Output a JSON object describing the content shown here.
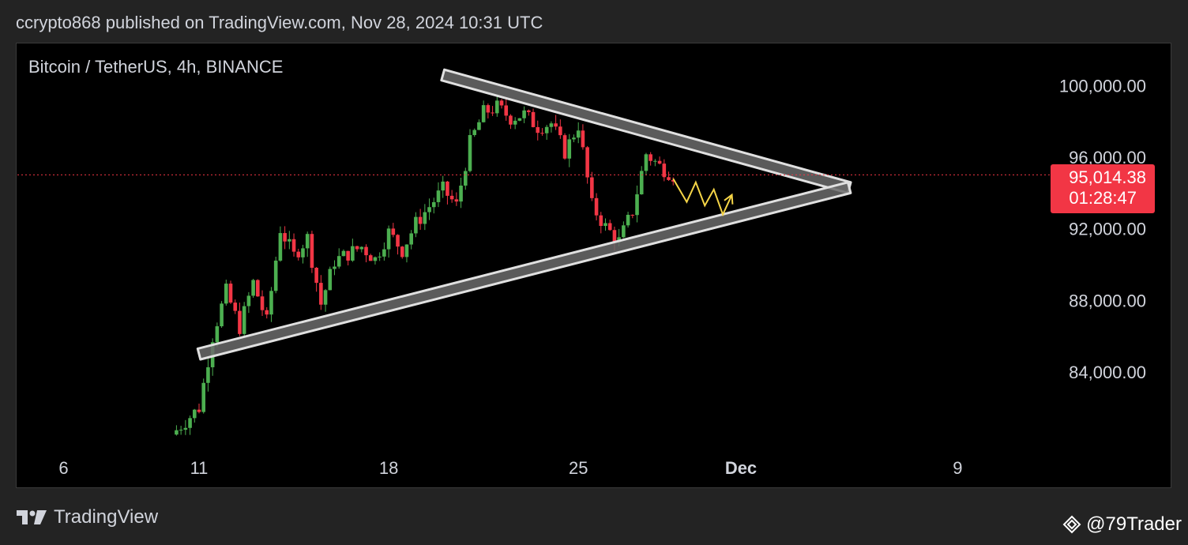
{
  "header": {
    "published_text": "ccrypto868 published on TradingView.com, Nov 28, 2024 10:31 UTC"
  },
  "chart": {
    "symbol_title": "Bitcoin / TetherUS, 4h, BINANCE",
    "price_label": "95,014.38",
    "countdown_label": "01:28:47"
  },
  "footer": {
    "brand": "TradingView",
    "watermark": "@79Trader"
  },
  "colors": {
    "background": "#000000",
    "up": "#4caf50",
    "down": "#f23645",
    "price_badge": "#f23645",
    "triangle_fill": "#6b6b6b",
    "triangle_border": "#e0e0e0",
    "projection": "#f5d547"
  },
  "chart_data": {
    "type": "candlestick",
    "title": "Bitcoin / TetherUS, 4h, BINANCE",
    "x_axis": {
      "ticks": [
        {
          "label": "6",
          "date": "2024-11-06"
        },
        {
          "label": "11",
          "date": "2024-11-11"
        },
        {
          "label": "18",
          "date": "2024-11-18"
        },
        {
          "label": "25",
          "date": "2024-11-25"
        },
        {
          "label": "Dec",
          "date": "2024-12-01"
        },
        {
          "label": "9",
          "date": "2024-12-09"
        }
      ]
    },
    "y_axis": {
      "range": [
        80000,
        102000
      ],
      "ticks": [
        {
          "label": "84,000.00",
          "value": 84000
        },
        {
          "label": "88,000.00",
          "value": 88000
        },
        {
          "label": "92,000.00",
          "value": 92000
        },
        {
          "label": "96,000.00",
          "value": 96000
        },
        {
          "label": "100,000.00",
          "value": 100000
        }
      ]
    },
    "current_price": 95014.38,
    "close_path": [
      {
        "date": "2024-11-10",
        "close": 80500
      },
      {
        "date": "2024-11-11",
        "close": 82000
      },
      {
        "date": "2024-11-11T12:00",
        "close": 86000
      },
      {
        "date": "2024-11-12",
        "close": 88500
      },
      {
        "date": "2024-11-12T12:00",
        "close": 86500
      },
      {
        "date": "2024-11-13",
        "close": 89000
      },
      {
        "date": "2024-11-13T12:00",
        "close": 86800
      },
      {
        "date": "2024-11-14",
        "close": 92000
      },
      {
        "date": "2024-11-14T12:00",
        "close": 90500
      },
      {
        "date": "2024-11-15",
        "close": 91500
      },
      {
        "date": "2024-11-15T12:00",
        "close": 87800
      },
      {
        "date": "2024-11-16",
        "close": 90200
      },
      {
        "date": "2024-11-17",
        "close": 91000
      },
      {
        "date": "2024-11-17T12:00",
        "close": 90300
      },
      {
        "date": "2024-11-18",
        "close": 91800
      },
      {
        "date": "2024-11-18T12:00",
        "close": 90800
      },
      {
        "date": "2024-11-19",
        "close": 92300
      },
      {
        "date": "2024-11-20",
        "close": 94200
      },
      {
        "date": "2024-11-20T12:00",
        "close": 93300
      },
      {
        "date": "2024-11-21",
        "close": 96800
      },
      {
        "date": "2024-11-21T12:00",
        "close": 98500
      },
      {
        "date": "2024-11-22",
        "close": 98800
      },
      {
        "date": "2024-11-22T12:00",
        "close": 98200
      },
      {
        "date": "2024-11-23",
        "close": 98400
      },
      {
        "date": "2024-11-23T12:00",
        "close": 97700
      },
      {
        "date": "2024-11-24",
        "close": 97900
      },
      {
        "date": "2024-11-24T12:00",
        "close": 96300
      },
      {
        "date": "2024-11-25",
        "close": 97800
      },
      {
        "date": "2024-11-25T12:00",
        "close": 93300
      },
      {
        "date": "2024-11-26",
        "close": 92100
      },
      {
        "date": "2024-11-26T12:00",
        "close": 91300
      },
      {
        "date": "2024-11-27",
        "close": 93000
      },
      {
        "date": "2024-11-27T12:00",
        "close": 96200
      },
      {
        "date": "2024-11-28",
        "close": 95500
      },
      {
        "date": "2024-11-28T12:00",
        "close": 95014.38
      }
    ],
    "annotations": {
      "triangle_upper_line": [
        {
          "date": "2024-11-20",
          "price": 100600
        },
        {
          "date": "2024-12-05",
          "price": 94300
        }
      ],
      "triangle_lower_line": [
        {
          "date": "2024-11-11",
          "price": 85000
        },
        {
          "date": "2024-12-05",
          "price": 94300
        }
      ],
      "projection_zigzag": [
        {
          "date": "2024-11-28T12:00",
          "price": 94800
        },
        {
          "date": "2024-11-29",
          "price": 93500
        },
        {
          "date": "2024-11-29T08:00",
          "price": 94600
        },
        {
          "date": "2024-11-29T16:00",
          "price": 93300
        },
        {
          "date": "2024-11-30",
          "price": 94200
        },
        {
          "date": "2024-11-30T08:00",
          "price": 92800
        },
        {
          "date": "2024-11-30T16:00",
          "price": 93900
        }
      ]
    },
    "grid": false,
    "legend": "none"
  }
}
